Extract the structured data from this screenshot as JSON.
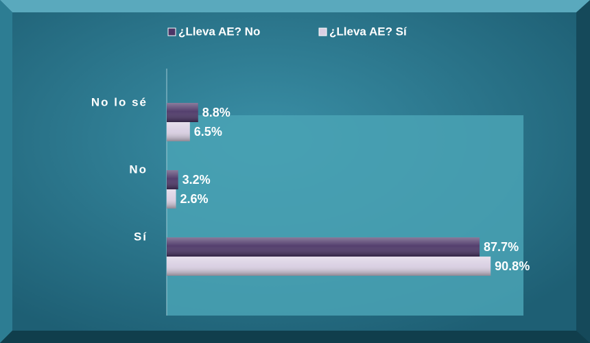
{
  "chart_data": {
    "type": "hbar",
    "categories": [
      "No lo sé",
      "No",
      "Sí"
    ],
    "series": [
      {
        "name": "¿Lleva AE? No",
        "color": "#4b3566",
        "values": [
          8.8,
          3.2,
          87.7
        ],
        "value_labels": [
          "8.8%",
          "3.2%",
          "87.7%"
        ]
      },
      {
        "name": "¿Lleva AE? Sí",
        "color": "#d9cfe2",
        "values": [
          6.5,
          2.6,
          90.8
        ],
        "value_labels": [
          "6.5%",
          "2.6%",
          "90.8%"
        ]
      }
    ],
    "xlim": [
      0,
      100
    ],
    "legend": "top"
  }
}
